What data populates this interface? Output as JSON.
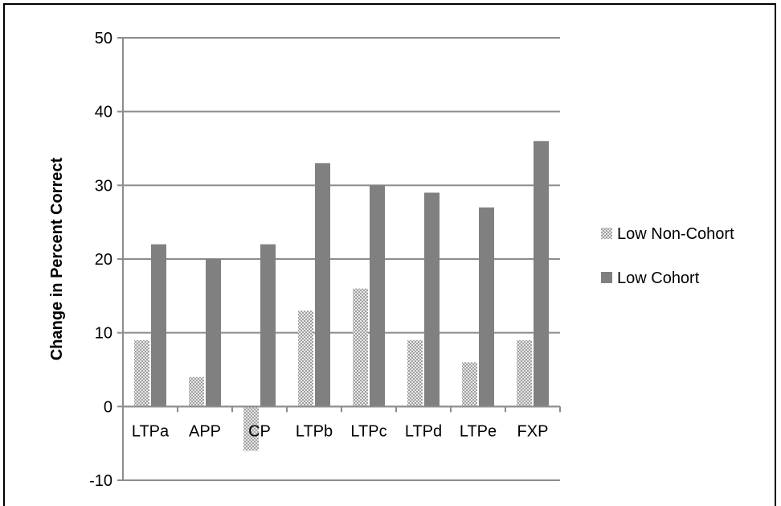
{
  "chart_data": {
    "type": "bar",
    "ylabel": "Change in Percent Correct",
    "ylim": [
      -10,
      50
    ],
    "yticks": [
      -10,
      0,
      10,
      20,
      30,
      40,
      50
    ],
    "categories": [
      "LTPa",
      "APP",
      "CP",
      "LTPb",
      "LTPc",
      "LTPd",
      "LTPe",
      "FXP"
    ],
    "series": [
      {
        "name": "Low Non-Cohort",
        "values": [
          9,
          4,
          -6,
          13,
          16,
          9,
          6,
          9
        ],
        "color": "#b8b8b8",
        "pattern": "checker"
      },
      {
        "name": "Low Cohort",
        "values": [
          22,
          20,
          22,
          33,
          30,
          29,
          27,
          36
        ],
        "color": "#808080"
      }
    ],
    "grid": true,
    "legend": "right"
  }
}
